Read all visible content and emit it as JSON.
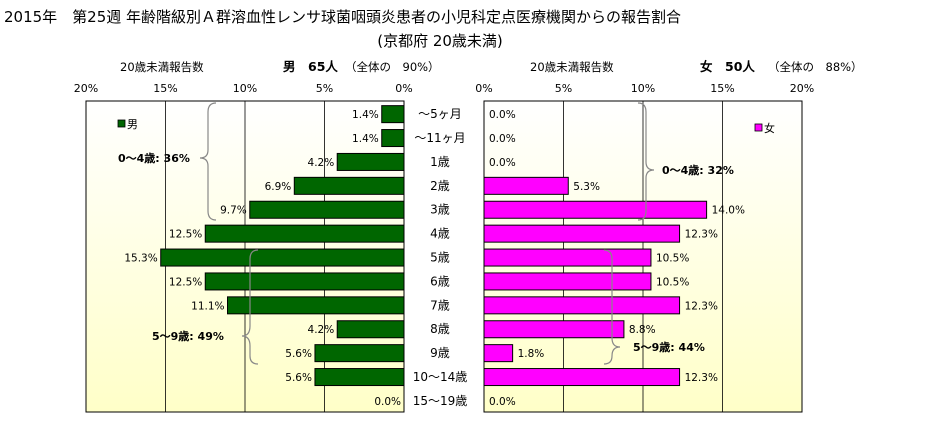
{
  "title": {
    "line1": "2015年　第25週 年齢階級別Ａ群溶血性レンサ球菌咽頭炎患者の小児科定点医療機関からの報告割合",
    "line2": "(京都府 20歳未満)"
  },
  "left_panel": {
    "header_label": "20歳未満報告数",
    "header_summary": "男　65人",
    "header_share": "（全体の　90%）",
    "legend": "男",
    "group_notes": [
      "0～4歳: 36%",
      "5～9歳: 49%"
    ]
  },
  "right_panel": {
    "header_label": "20歳未満報告数",
    "header_summary": "女　50人",
    "header_share": "（全体の　88%）",
    "legend": "女",
    "group_notes": [
      "0～4歳: 32%",
      "5～9歳: 44%"
    ]
  },
  "colors": {
    "male": "#006600",
    "female": "#ff00ff",
    "grid": "#000000",
    "brace": "#888888",
    "bg_top": "#ffffff",
    "bg_bottom": "#ffffc8"
  },
  "chart_data": {
    "type": "bar",
    "orientation": "horizontal-population-pyramid",
    "categories": [
      "～5ヶ月",
      "～11ヶ月",
      "1歳",
      "2歳",
      "3歳",
      "4歳",
      "5歳",
      "6歳",
      "7歳",
      "8歳",
      "9歳",
      "10～14歳",
      "15～19歳"
    ],
    "series": [
      {
        "name": "男",
        "values": [
          1.4,
          1.4,
          4.2,
          6.9,
          9.7,
          12.5,
          15.3,
          12.5,
          11.1,
          4.2,
          5.6,
          5.6,
          0.0
        ],
        "labels": [
          "1.4%",
          "1.4%",
          "4.2%",
          "6.9%",
          "9.7%",
          "12.5%",
          "15.3%",
          "12.5%",
          "11.1%",
          "4.2%",
          "5.6%",
          "5.6%",
          "0.0%"
        ]
      },
      {
        "name": "女",
        "values": [
          0.0,
          0.0,
          0.0,
          5.3,
          14.0,
          12.3,
          10.5,
          10.5,
          12.3,
          8.8,
          1.8,
          12.3,
          0.0
        ],
        "labels": [
          "0.0%",
          "0.0%",
          "0.0%",
          "5.3%",
          "14.0%",
          "12.3%",
          "10.5%",
          "10.5%",
          "12.3%",
          "8.8%",
          "1.8%",
          "12.3%",
          "0.0%"
        ]
      }
    ],
    "xlim": [
      0,
      20
    ],
    "x_ticks": [
      "0%",
      "5%",
      "10%",
      "15%",
      "20%"
    ],
    "grid": true
  }
}
